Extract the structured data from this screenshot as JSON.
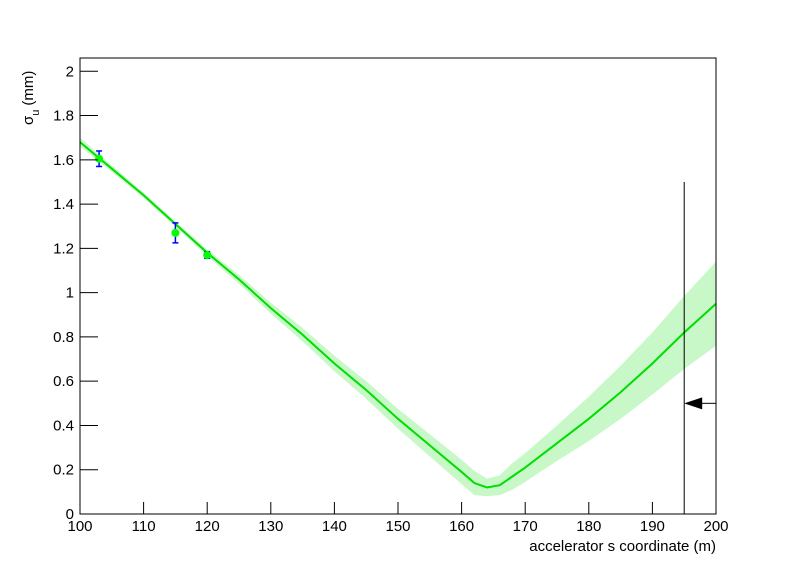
{
  "chart_data": {
    "type": "fit",
    "y_label": {
      "symbol": "σ",
      "subscript": "u",
      "unit": "(mm)"
    },
    "x_label": "accelerator s coordinate (m)",
    "xlim": [
      100,
      200
    ],
    "ylim": [
      0,
      2.06
    ],
    "xticks": [
      100,
      110,
      120,
      130,
      140,
      150,
      160,
      170,
      180,
      190,
      200
    ],
    "yticks": [
      0,
      0.2,
      0.4,
      0.6,
      0.8,
      1,
      1.2,
      1.4,
      1.6,
      1.8,
      2
    ],
    "measurements": {
      "color": "#00ff00",
      "error_color": "#0000ff",
      "x": [
        103,
        115,
        120
      ],
      "values": [
        1.605,
        1.27,
        1.17
      ],
      "errors": [
        0.035,
        0.045,
        0.015
      ]
    },
    "fit": {
      "color": "#00dd00",
      "band_color": "#c8f8c8",
      "x": [
        100,
        105,
        110,
        115,
        120,
        125,
        130,
        135,
        140,
        145,
        150,
        155,
        160,
        162,
        164,
        166,
        168,
        170,
        175,
        180,
        185,
        190,
        195,
        200
      ],
      "values": [
        1.68,
        1.56,
        1.44,
        1.31,
        1.18,
        1.06,
        0.93,
        0.81,
        0.68,
        0.56,
        0.43,
        0.31,
        0.19,
        0.14,
        0.12,
        0.13,
        0.17,
        0.21,
        0.32,
        0.43,
        0.55,
        0.68,
        0.82,
        0.95
      ],
      "band_lower": [
        1.66,
        1.545,
        1.428,
        1.298,
        1.165,
        1.04,
        0.905,
        0.78,
        0.645,
        0.52,
        0.385,
        0.26,
        0.135,
        0.085,
        0.08,
        0.085,
        0.11,
        0.145,
        0.24,
        0.33,
        0.43,
        0.54,
        0.655,
        0.76
      ],
      "band_upper": [
        1.7,
        1.575,
        1.452,
        1.322,
        1.195,
        1.08,
        0.955,
        0.84,
        0.715,
        0.6,
        0.475,
        0.36,
        0.245,
        0.195,
        0.16,
        0.175,
        0.23,
        0.275,
        0.4,
        0.53,
        0.67,
        0.82,
        0.985,
        1.14
      ]
    },
    "marker_line": {
      "x": 195,
      "y": [
        0,
        1.5
      ]
    },
    "arrow": {
      "y": 0.5,
      "x": [
        200,
        195
      ]
    }
  }
}
